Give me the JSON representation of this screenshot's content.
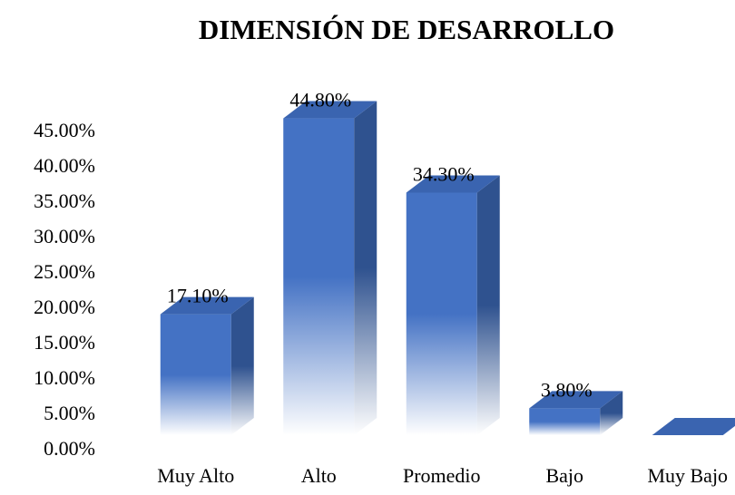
{
  "chart_data": {
    "type": "bar",
    "title": "DIMENSIÓN DE DESARROLLO",
    "categories": [
      "Muy Alto",
      "Alto",
      "Promedio",
      "Bajo",
      "Muy Bajo"
    ],
    "values": [
      17.1,
      44.8,
      34.3,
      3.8,
      0
    ],
    "value_labels": [
      "17.10%",
      "44.80%",
      "34.30%",
      "3.80%",
      null
    ],
    "color": "#4472c4",
    "ylim": [
      0,
      45
    ],
    "yticks": [
      {
        "value": 0,
        "label": "0.00%"
      },
      {
        "value": 5,
        "label": "5.00%"
      },
      {
        "value": 10,
        "label": "10.00%"
      },
      {
        "value": 15,
        "label": "15.00%"
      },
      {
        "value": 20,
        "label": "20.00%"
      },
      {
        "value": 25,
        "label": "25.00%"
      },
      {
        "value": 30,
        "label": "30.00%"
      },
      {
        "value": 35,
        "label": "35.00%"
      },
      {
        "value": 40,
        "label": "40.00%"
      },
      {
        "value": 45,
        "label": "45.00%"
      }
    ],
    "grid": false
  }
}
